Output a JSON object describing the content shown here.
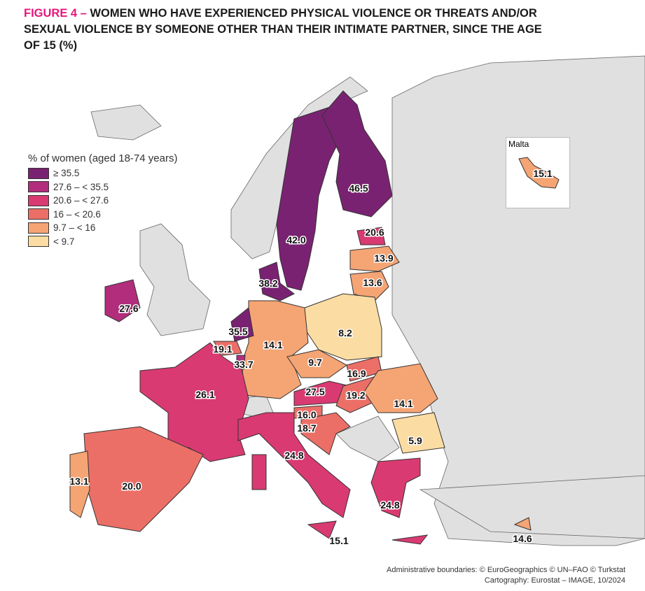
{
  "title": {
    "figure": "FIGURE 4 –",
    "text": "WOMEN WHO HAVE EXPERIENCED PHYSICAL VIOLENCE OR THREATS AND/OR SEXUAL VIOLENCE BY SOMEONE OTHER THAN THEIR INTIMATE PARTNER, SINCE THE AGE OF 15 (%)"
  },
  "legend": {
    "title": "% of women (aged 18-74 years)",
    "classes": [
      {
        "label": "≥ 35.5",
        "color": "#7a2272"
      },
      {
        "label": "27.6 – < 35.5",
        "color": "#b22d7c"
      },
      {
        "label": "20.6 – < 27.6",
        "color": "#d93a72"
      },
      {
        "label": "16 – < 20.6",
        "color": "#ec6f67"
      },
      {
        "label": "9.7 – < 16",
        "color": "#f5a474"
      },
      {
        "label": "< 9.7",
        "color": "#fbdca3"
      }
    ]
  },
  "values": {
    "SE": "42.0",
    "FI": "46.5",
    "DK": "38.2",
    "EE": "20.6",
    "LV": "13.9",
    "LT": "13.6",
    "PL": "8.2",
    "DE": "14.1",
    "NL": "35.5",
    "BE": "19.1",
    "LU": "33.7",
    "FR": "26.1",
    "CZ": "9.7",
    "SK": "16.9",
    "AT": "27.5",
    "HU": "19.2",
    "SI": "16.0",
    "HR": "18.7",
    "RO": "14.1",
    "BG": "5.9",
    "IT": "24.8",
    "MT_inset": "15.1",
    "MT": "15.1",
    "GR": "24.8",
    "CY": "14.6",
    "ES": "20.0",
    "PT": "13.1",
    "IE": "27.6"
  },
  "inset": {
    "title": "Malta"
  },
  "credits": [
    "Administrative boundaries: © EuroGeographics © UN–FAO © Turkstat",
    "Cartography: Eurostat – IMAGE, 10/2024"
  ]
}
